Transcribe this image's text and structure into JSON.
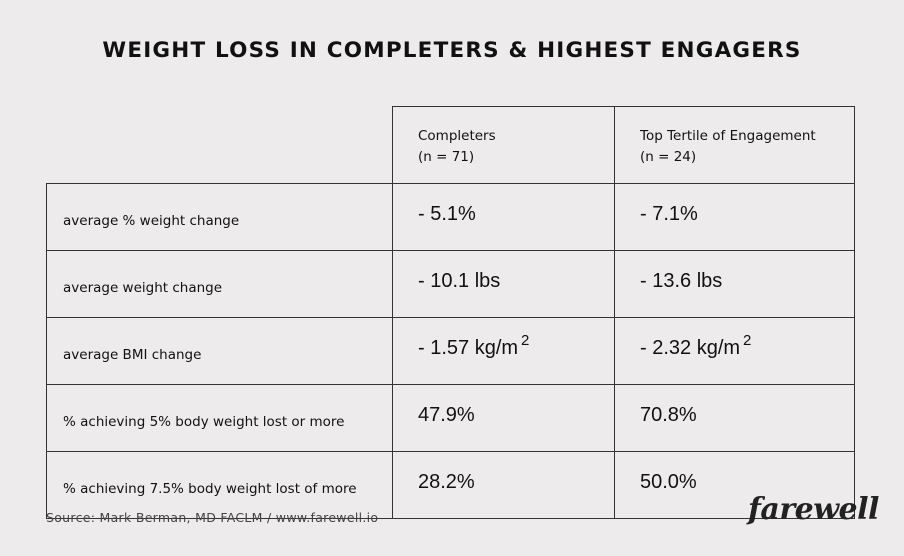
{
  "title": "WEIGHT LOSS IN COMPLETERS & HIGHEST ENGAGERS",
  "table": {
    "columns": [
      {
        "name": "Completers",
        "n": "(n = 71)"
      },
      {
        "name": "Top Tertile of Engagement",
        "n": "(n = 24)"
      }
    ],
    "rows": [
      {
        "label": "average % weight change",
        "completers": "- 5.1%",
        "top_tertile": "- 7.1%"
      },
      {
        "label": "average weight change",
        "completers": "- 10.1 lbs",
        "top_tertile": "- 13.6 lbs"
      },
      {
        "label": "average BMI change",
        "completers": "- 1.57 kg/m",
        "top_tertile": "- 2.32 kg/m",
        "superscript": "2"
      },
      {
        "label": "% achieving 5% body weight lost or more",
        "completers": "47.9%",
        "top_tertile": "70.8%"
      },
      {
        "label": "% achieving 7.5% body weight lost of more",
        "completers": "28.2%",
        "top_tertile": "50.0%"
      }
    ]
  },
  "source": "Source: Mark Berman, MD FACLM / www.farewell.io",
  "logo": "farewell"
}
